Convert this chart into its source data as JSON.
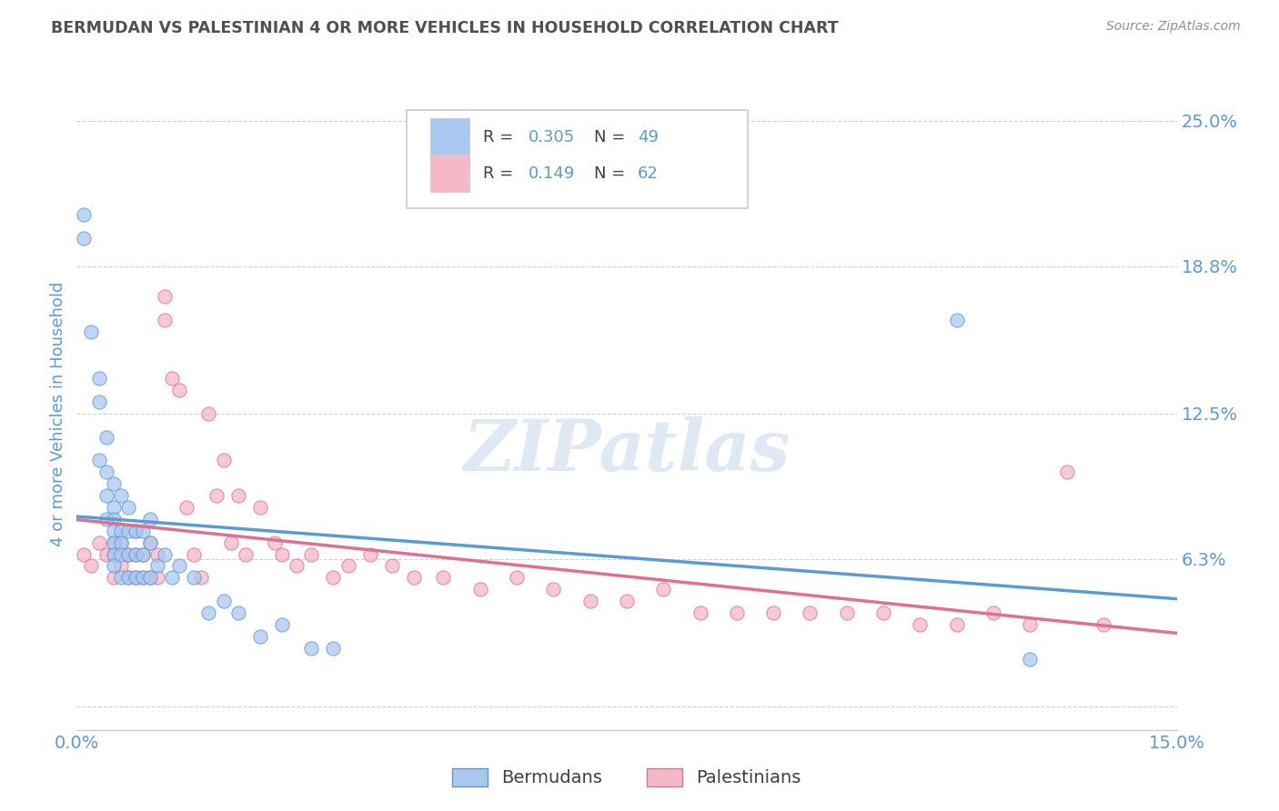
{
  "title": "BERMUDAN VS PALESTINIAN 4 OR MORE VEHICLES IN HOUSEHOLD CORRELATION CHART",
  "source": "Source: ZipAtlas.com",
  "ylabel": "4 or more Vehicles in Household",
  "xlim": [
    0.0,
    0.15
  ],
  "ylim": [
    -0.01,
    0.26
  ],
  "ytick_positions": [
    0.0,
    0.063,
    0.125,
    0.188,
    0.25
  ],
  "ytick_labels": [
    "",
    "6.3%",
    "12.5%",
    "18.8%",
    "25.0%"
  ],
  "bermuda_color": "#5b9bd5",
  "bermuda_fill": "#a8c8f0",
  "palestine_color": "#e07090",
  "palestine_fill": "#f5b8c8",
  "watermark": "ZIPatlas",
  "background_color": "#ffffff",
  "grid_color": "#d0d0d0",
  "title_color": "#505050",
  "axis_label_color": "#5b9bd5",
  "tick_label_color": "#5b9bd5",
  "bermuda_x": [
    0.001,
    0.001,
    0.002,
    0.003,
    0.003,
    0.003,
    0.004,
    0.004,
    0.004,
    0.004,
    0.005,
    0.005,
    0.005,
    0.005,
    0.005,
    0.005,
    0.005,
    0.006,
    0.006,
    0.006,
    0.006,
    0.006,
    0.007,
    0.007,
    0.007,
    0.007,
    0.008,
    0.008,
    0.008,
    0.009,
    0.009,
    0.009,
    0.01,
    0.01,
    0.01,
    0.011,
    0.012,
    0.013,
    0.014,
    0.016,
    0.018,
    0.02,
    0.022,
    0.025,
    0.028,
    0.032,
    0.035,
    0.12,
    0.13
  ],
  "bermuda_y": [
    0.21,
    0.2,
    0.16,
    0.14,
    0.13,
    0.105,
    0.115,
    0.1,
    0.09,
    0.08,
    0.095,
    0.085,
    0.08,
    0.075,
    0.07,
    0.065,
    0.06,
    0.09,
    0.075,
    0.07,
    0.065,
    0.055,
    0.085,
    0.075,
    0.065,
    0.055,
    0.075,
    0.065,
    0.055,
    0.075,
    0.065,
    0.055,
    0.08,
    0.07,
    0.055,
    0.06,
    0.065,
    0.055,
    0.06,
    0.055,
    0.04,
    0.045,
    0.04,
    0.03,
    0.035,
    0.025,
    0.025,
    0.165,
    0.02
  ],
  "palestine_x": [
    0.001,
    0.002,
    0.003,
    0.004,
    0.005,
    0.005,
    0.005,
    0.006,
    0.006,
    0.007,
    0.007,
    0.008,
    0.008,
    0.008,
    0.009,
    0.009,
    0.01,
    0.01,
    0.011,
    0.011,
    0.012,
    0.012,
    0.013,
    0.014,
    0.015,
    0.016,
    0.017,
    0.018,
    0.019,
    0.02,
    0.021,
    0.022,
    0.023,
    0.025,
    0.027,
    0.028,
    0.03,
    0.032,
    0.035,
    0.037,
    0.04,
    0.043,
    0.046,
    0.05,
    0.055,
    0.06,
    0.065,
    0.07,
    0.075,
    0.08,
    0.085,
    0.09,
    0.095,
    0.1,
    0.105,
    0.11,
    0.115,
    0.12,
    0.125,
    0.13,
    0.135,
    0.14
  ],
  "palestine_y": [
    0.065,
    0.06,
    0.07,
    0.065,
    0.07,
    0.065,
    0.055,
    0.07,
    0.06,
    0.065,
    0.055,
    0.075,
    0.065,
    0.055,
    0.065,
    0.055,
    0.07,
    0.055,
    0.065,
    0.055,
    0.175,
    0.165,
    0.14,
    0.135,
    0.085,
    0.065,
    0.055,
    0.125,
    0.09,
    0.105,
    0.07,
    0.09,
    0.065,
    0.085,
    0.07,
    0.065,
    0.06,
    0.065,
    0.055,
    0.06,
    0.065,
    0.06,
    0.055,
    0.055,
    0.05,
    0.055,
    0.05,
    0.045,
    0.045,
    0.05,
    0.04,
    0.04,
    0.04,
    0.04,
    0.04,
    0.04,
    0.035,
    0.035,
    0.04,
    0.035,
    0.1,
    0.035
  ]
}
